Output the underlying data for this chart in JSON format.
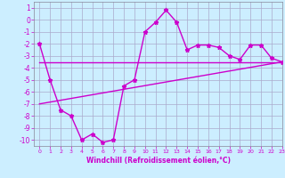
{
  "xlabel": "Windchill (Refroidissement éolien,°C)",
  "ylabel": "",
  "xlim": [
    -0.5,
    23
  ],
  "ylim": [
    -10.5,
    1.5
  ],
  "yticks": [
    1,
    0,
    -1,
    -2,
    -3,
    -4,
    -5,
    -6,
    -7,
    -8,
    -9,
    -10
  ],
  "xticks": [
    0,
    1,
    2,
    3,
    4,
    5,
    6,
    7,
    8,
    9,
    10,
    11,
    12,
    13,
    14,
    15,
    16,
    17,
    18,
    19,
    20,
    21,
    22,
    23
  ],
  "background_color": "#cceeff",
  "grid_color": "#aaaacc",
  "line_color": "#cc00cc",
  "series1_x": [
    0,
    1,
    2,
    3,
    4,
    5,
    6,
    7,
    8,
    9,
    10,
    11,
    12,
    13,
    14,
    15,
    16,
    17,
    18,
    19,
    20,
    21,
    22,
    23
  ],
  "series1_y": [
    -2,
    -5,
    -7.5,
    -8,
    -10,
    -9.5,
    -10.2,
    -10,
    -5.5,
    -5.0,
    -1,
    -0.2,
    0.8,
    -0.2,
    -2.5,
    -2.1,
    -2.1,
    -2.3,
    -3.0,
    -3.3,
    -2.1,
    -2.1,
    -3.2,
    -3.5
  ],
  "series2_x": [
    0,
    23
  ],
  "series2_y": [
    -3.5,
    -3.5
  ],
  "series3_x": [
    0,
    23
  ],
  "series3_y": [
    -7.0,
    -3.5
  ],
  "marker_style": "*",
  "marker_size": 3.5,
  "line_width": 1.0
}
